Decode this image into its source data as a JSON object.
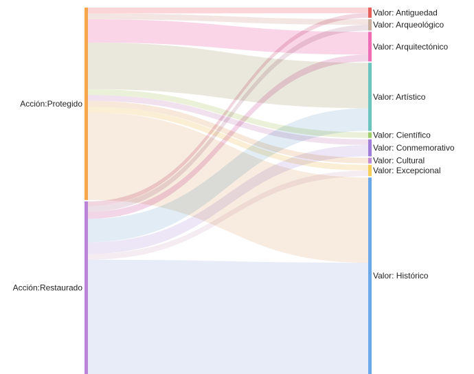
{
  "diagram": {
    "type": "sankey",
    "sources": [
      {
        "id": "protegido",
        "label": "Acción:Protegido",
        "color": "#f7a54a"
      },
      {
        "id": "restaurado",
        "label": "Acción:Restaurado",
        "color": "#b885d6"
      }
    ],
    "targets": [
      {
        "id": "antiguedad",
        "label": "Valor: Antiguedad",
        "color": "#e5605a"
      },
      {
        "id": "arqueologico",
        "label": "Valor: Arqueológico",
        "color": "#c9aea0"
      },
      {
        "id": "arquitectonico",
        "label": "Valor: Arquitectónico",
        "color": "#ef6cb6"
      },
      {
        "id": "artistico",
        "label": "Valor: Artístico",
        "color": "#6cc4c0"
      },
      {
        "id": "cientifico",
        "label": "Valor: Científico",
        "color": "#9ccd6a"
      },
      {
        "id": "conmemorativo",
        "label": "Valor: Conmemorativo",
        "color": "#9f7fd8"
      },
      {
        "id": "cultural",
        "label": "Valor: Cultural",
        "color": "#c28ad6"
      },
      {
        "id": "excepcional",
        "label": "Valor: Excepcional",
        "color": "#f6cf5a"
      },
      {
        "id": "historico",
        "label": "Valor: Histórico",
        "color": "#6aa8ea"
      }
    ],
    "links": [
      {
        "source": "protegido",
        "target": "antiguedad",
        "value": 5,
        "color": "#f8b2b8"
      },
      {
        "source": "protegido",
        "target": "arqueologico",
        "value": 5,
        "color": "#ead0c8"
      },
      {
        "source": "protegido",
        "target": "arquitectonico",
        "value": 20,
        "color": "#f6b3d6"
      },
      {
        "source": "protegido",
        "target": "artistico",
        "value": 40,
        "color": "#d8d6c0"
      },
      {
        "source": "protegido",
        "target": "cientifico",
        "value": 5,
        "color": "#d8e6b8"
      },
      {
        "source": "protegido",
        "target": "conmemorativo",
        "value": 5,
        "color": "#e6c8e2"
      },
      {
        "source": "protegido",
        "target": "cultural",
        "value": 5,
        "color": "#f0d6bc"
      },
      {
        "source": "protegido",
        "target": "excepcional",
        "value": 5,
        "color": "#f6e2b0"
      },
      {
        "source": "protegido",
        "target": "historico",
        "value": 75,
        "color": "#f3dcc6"
      },
      {
        "source": "restaurado",
        "target": "antiguedad",
        "value": 4,
        "color": "#e6b2c4"
      },
      {
        "source": "restaurado",
        "target": "arqueologico",
        "value": 5,
        "color": "#dcc4d0"
      },
      {
        "source": "restaurado",
        "target": "arquitectonico",
        "value": 6,
        "color": "#e8b2d4"
      },
      {
        "source": "restaurado",
        "target": "artistico",
        "value": 20,
        "color": "#c8dceb"
      },
      {
        "source": "restaurado",
        "target": "conmemorativo",
        "value": 10,
        "color": "#dcd2ef"
      },
      {
        "source": "restaurado",
        "target": "excepcional",
        "value": 5,
        "color": "#ecdce6"
      },
      {
        "source": "restaurado",
        "target": "historico",
        "value": 98,
        "color": "#d6dcf2"
      }
    ]
  }
}
